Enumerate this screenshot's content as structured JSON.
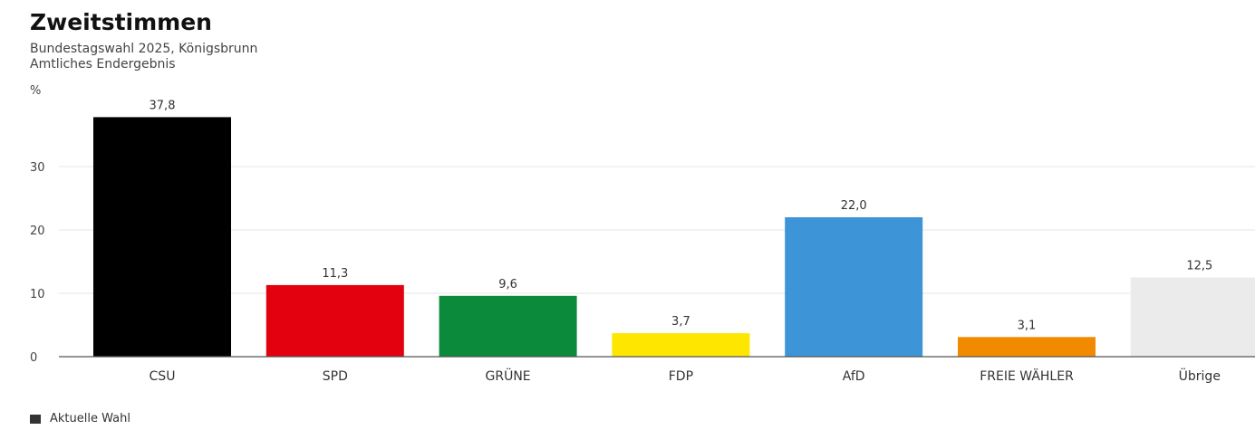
{
  "chart_data": {
    "type": "bar",
    "title": "Zweitstimmen",
    "subtitle": [
      "Bundestagswahl 2025, Königsbrunn",
      "Amtliches Endergebnis"
    ],
    "ylabel": "%",
    "ylim": [
      0,
      38
    ],
    "yticks": [
      "0",
      "10",
      "20",
      "30"
    ],
    "grid": true,
    "categories": [
      "CSU",
      "SPD",
      "GRÜNE",
      "FDP",
      "AfD",
      "FREIE WÄHLER",
      "Übrige"
    ],
    "series": [
      {
        "name": "Aktuelle Wahl",
        "values": [
          37.8,
          11.3,
          9.6,
          3.7,
          22.0,
          3.1,
          12.5
        ],
        "labels": [
          "37,8",
          "11,3",
          "9,6",
          "3,7",
          "22,0",
          "3,1",
          "12,5"
        ]
      }
    ],
    "colors": [
      "#000000",
      "#e3000f",
      "#0a8a3a",
      "#ffe600",
      "#3d95d8",
      "#f28a00",
      "#ebebeb"
    ],
    "legend": {
      "position": "bottom-left",
      "label": "Aktuelle Wahl",
      "color": "#333333"
    }
  }
}
